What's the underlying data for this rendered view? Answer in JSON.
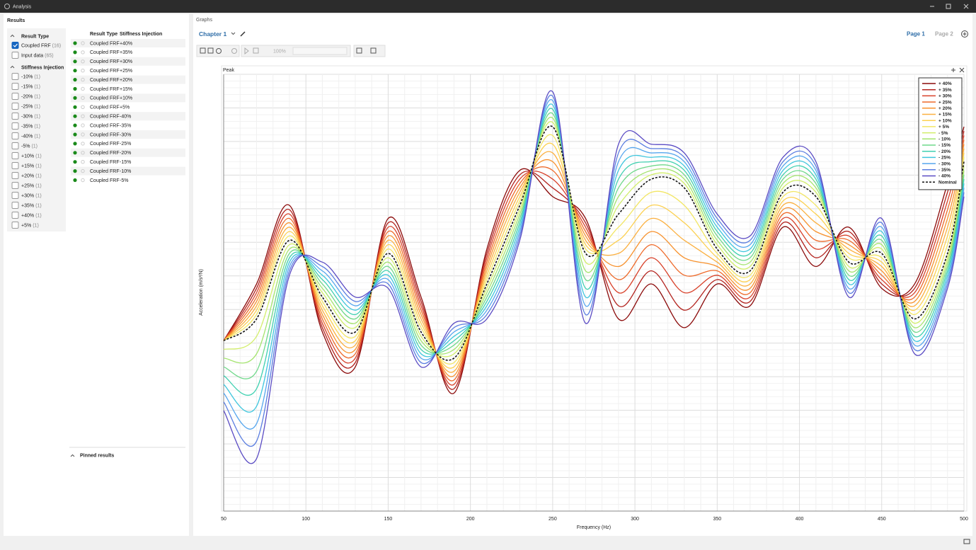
{
  "window": {
    "title": "Analysis"
  },
  "results": {
    "title": "Results",
    "filters": {
      "result_type": {
        "heading": "Result Type",
        "items": [
          {
            "label": "Coupled FRF",
            "count": "(16)",
            "checked": true
          },
          {
            "label": "Input data",
            "count": "(65)",
            "checked": false
          }
        ]
      },
      "stiffness_injection": {
        "heading": "Stiffness Injection",
        "items": [
          {
            "label": "-10%",
            "count": "(1)",
            "checked": false
          },
          {
            "label": "-15%",
            "count": "(1)",
            "checked": false
          },
          {
            "label": "-20%",
            "count": "(1)",
            "checked": false
          },
          {
            "label": "-25%",
            "count": "(1)",
            "checked": false
          },
          {
            "label": "-30%",
            "count": "(1)",
            "checked": false
          },
          {
            "label": "-35%",
            "count": "(1)",
            "checked": false
          },
          {
            "label": "-40%",
            "count": "(1)",
            "checked": false
          },
          {
            "label": "-5%",
            "count": "(1)",
            "checked": false
          },
          {
            "label": "+10%",
            "count": "(1)",
            "checked": false
          },
          {
            "label": "+15%",
            "count": "(1)",
            "checked": false
          },
          {
            "label": "+20%",
            "count": "(1)",
            "checked": false
          },
          {
            "label": "+25%",
            "count": "(1)",
            "checked": false
          },
          {
            "label": "+30%",
            "count": "(1)",
            "checked": false
          },
          {
            "label": "+35%",
            "count": "(1)",
            "checked": false
          },
          {
            "label": "+40%",
            "count": "(1)",
            "checked": false
          },
          {
            "label": "+5%",
            "count": "(1)",
            "checked": false
          }
        ]
      }
    },
    "table": {
      "headers": [
        "Result Type",
        "Stiffness Injection"
      ],
      "rows": [
        [
          "Coupled FRF",
          "+40%"
        ],
        [
          "Coupled FRF",
          "+35%"
        ],
        [
          "Coupled FRF",
          "+30%"
        ],
        [
          "Coupled FRF",
          "+25%"
        ],
        [
          "Coupled FRF",
          "+20%"
        ],
        [
          "Coupled FRF",
          "+15%"
        ],
        [
          "Coupled FRF",
          "+10%"
        ],
        [
          "Coupled FRF",
          "+5%"
        ],
        [
          "Coupled FRF",
          "-40%"
        ],
        [
          "Coupled FRF",
          "-35%"
        ],
        [
          "Coupled FRF",
          "-30%"
        ],
        [
          "Coupled FRF",
          "-25%"
        ],
        [
          "Coupled FRF",
          "-20%"
        ],
        [
          "Coupled FRF",
          "-15%"
        ],
        [
          "Coupled FRF",
          "-10%"
        ],
        [
          "Coupled FRF",
          "-5%"
        ]
      ]
    },
    "pinned": "Pinned results"
  },
  "graphs": {
    "label": "Graphs",
    "chapter": "Chapter 1",
    "pages": [
      "Page 1",
      "Page 2"
    ],
    "zoom": "100%"
  },
  "chart_data": {
    "type": "line",
    "title": "Peak",
    "x_label": "Frequency (Hz)",
    "y_label": "Acceleration (m/s²/N)",
    "xlim": [
      50,
      500
    ],
    "xticks": [
      50,
      100,
      150,
      200,
      250,
      300,
      350,
      400,
      450,
      500
    ],
    "ylim": [
      0,
      100
    ],
    "x": [
      50,
      70,
      90,
      110,
      130,
      150,
      170,
      190,
      210,
      230,
      250,
      270,
      290,
      310,
      330,
      350,
      370,
      390,
      410,
      430,
      450,
      470,
      490,
      500
    ],
    "series": [
      {
        "name": "+ 40%",
        "color": "#8b0a0a",
        "values": [
          39,
          52,
          70,
          41,
          33,
          67,
          49,
          27,
          60,
          78,
          72,
          67,
          44,
          52,
          42,
          52,
          47,
          65,
          56,
          65,
          51,
          52,
          75,
          88
        ]
      },
      {
        "name": "+ 35%",
        "color": "#b3231e",
        "values": [
          39,
          51,
          69,
          42,
          34,
          66,
          48,
          28,
          59,
          77,
          74,
          66,
          47,
          55,
          46,
          53,
          48,
          66,
          58,
          64,
          52,
          51,
          73,
          87
        ]
      },
      {
        "name": "+ 30%",
        "color": "#d8412a",
        "values": [
          39,
          50,
          68,
          43,
          35,
          65,
          47,
          29,
          58,
          76,
          76,
          65,
          50,
          58,
          50,
          54,
          49,
          67,
          60,
          63,
          53,
          50,
          71,
          86
        ]
      },
      {
        "name": "+ 25%",
        "color": "#ee6a2a",
        "values": [
          39,
          49,
          67,
          44,
          36,
          64,
          46,
          30,
          57,
          75,
          78,
          64,
          53,
          61,
          54,
          55,
          50,
          68,
          62,
          62,
          54,
          49,
          69,
          85
        ]
      },
      {
        "name": "+ 20%",
        "color": "#f7922e",
        "values": [
          39,
          48,
          66,
          45,
          37,
          63,
          45,
          31,
          56,
          74,
          80,
          63,
          56,
          64,
          58,
          56,
          51,
          69,
          64,
          61,
          55,
          48,
          67,
          84
        ]
      },
      {
        "name": "+ 15%",
        "color": "#fbb040",
        "values": [
          39,
          47,
          65,
          46,
          38,
          62,
          44,
          32,
          55,
          73,
          82,
          62,
          59,
          67,
          62,
          57,
          52,
          70,
          66,
          60,
          56,
          47,
          65,
          83
        ]
      },
      {
        "name": "+ 10%",
        "color": "#fcd050",
        "values": [
          39,
          46,
          64,
          47,
          39,
          61,
          43,
          33,
          54,
          72,
          84,
          61,
          62,
          70,
          66,
          58,
          53,
          71,
          68,
          59,
          57,
          46,
          63,
          82
        ]
      },
      {
        "name": "+ 5%",
        "color": "#f2e665",
        "values": [
          39,
          45,
          63,
          48,
          40,
          60,
          42,
          34,
          53,
          71,
          86,
          60,
          65,
          73,
          70,
          59,
          54,
          72,
          70,
          58,
          58,
          45,
          61,
          81
        ]
      },
      {
        "name": "- 5%",
        "color": "#d2ee6a",
        "values": [
          37,
          40,
          61,
          50,
          42,
          58,
          40,
          36,
          51,
          69,
          89,
          57,
          70,
          77,
          75,
          61,
          56,
          74,
          73,
          56,
          60,
          43,
          58,
          79
        ]
      },
      {
        "name": "- 10%",
        "color": "#a4e46e",
        "values": [
          35,
          36,
          60,
          51,
          43,
          57,
          39,
          37,
          50,
          68,
          90,
          55,
          72,
          78,
          76,
          62,
          57,
          75,
          74,
          55,
          61,
          42,
          57,
          78
        ]
      },
      {
        "name": "- 15%",
        "color": "#6fd88a",
        "values": [
          33,
          32,
          59,
          52,
          44,
          56,
          38,
          38,
          49,
          67,
          91,
          53,
          74,
          79,
          77,
          63,
          58,
          76,
          75,
          54,
          62,
          41,
          56,
          77
        ]
      },
      {
        "name": "- 20%",
        "color": "#3fd0b0",
        "values": [
          31,
          28,
          58,
          53,
          45,
          55,
          37,
          39,
          48,
          66,
          92,
          51,
          76,
          80,
          78,
          64,
          59,
          77,
          76,
          53,
          63,
          40,
          55,
          76
        ]
      },
      {
        "name": "- 25%",
        "color": "#3fc6dd",
        "values": [
          29,
          24,
          57,
          54,
          46,
          54,
          36,
          40,
          47,
          65,
          93,
          49,
          78,
          81,
          79,
          65,
          60,
          78,
          77,
          52,
          64,
          39,
          54,
          75
        ]
      },
      {
        "name": "- 30%",
        "color": "#56a6ee",
        "values": [
          27,
          20,
          56,
          55,
          47,
          53,
          35,
          41,
          46,
          64,
          94,
          47,
          80,
          82,
          80,
          66,
          61,
          79,
          78,
          51,
          65,
          38,
          53,
          74
        ]
      },
      {
        "name": "- 35%",
        "color": "#5a7de0",
        "values": [
          25,
          16,
          55,
          56,
          48,
          52,
          34,
          42,
          45,
          63,
          95,
          45,
          82,
          83,
          81,
          67,
          62,
          80,
          79,
          50,
          66,
          37,
          52,
          73
        ]
      },
      {
        "name": "- 40%",
        "color": "#5b4cc4",
        "values": [
          23,
          12,
          54,
          57,
          49,
          51,
          33,
          43,
          44,
          62,
          96,
          43,
          84,
          84,
          82,
          68,
          63,
          81,
          80,
          49,
          67,
          36,
          51,
          72
        ]
      },
      {
        "name": "Nominal",
        "color": "#111111",
        "dashed": true,
        "values": [
          39,
          44,
          62,
          49,
          41,
          59,
          41,
          35,
          52,
          70,
          88,
          59,
          68,
          76,
          74,
          60,
          55,
          73,
          72,
          57,
          59,
          44,
          59,
          80
        ]
      }
    ]
  }
}
